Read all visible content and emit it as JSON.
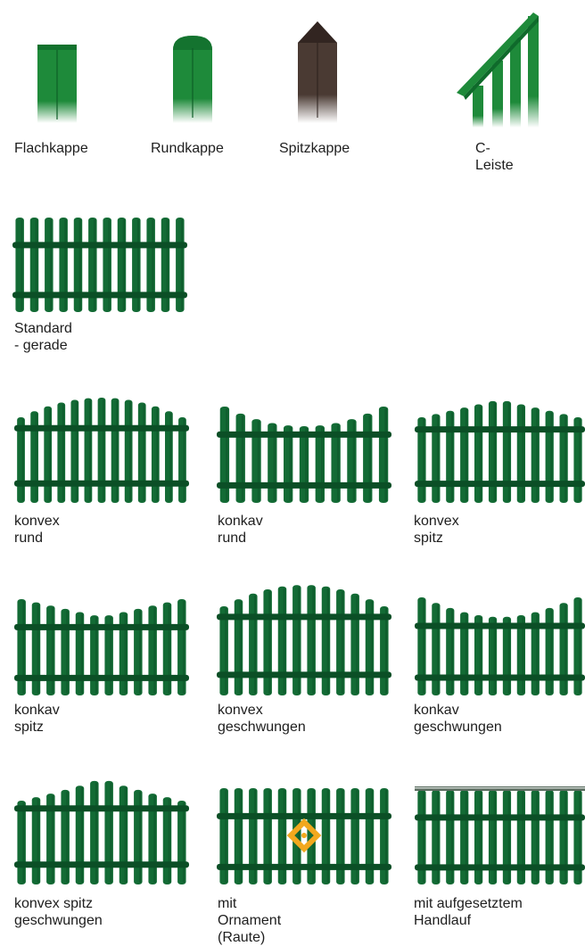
{
  "caps": [
    {
      "label": "Flachkappe",
      "shape": "flat",
      "color": "#1e8a3a"
    },
    {
      "label": "Rundkappe",
      "shape": "round",
      "color": "#1e8a3a"
    },
    {
      "label": "Spitzkappe",
      "shape": "pointed",
      "color": "#4a3a33"
    },
    {
      "label": "C-Leiste",
      "shape": "c-rail",
      "color": "#1e8a3a"
    }
  ],
  "fences": [
    {
      "label": "Standard - gerade",
      "style": "straight"
    },
    {
      "label": "konvex rund",
      "style": "convex-round"
    },
    {
      "label": "konkav rund",
      "style": "concave-round"
    },
    {
      "label": "konvex spitz",
      "style": "convex-pointed"
    },
    {
      "label": "konkav spitz",
      "style": "concave-pointed"
    },
    {
      "label": "konvex geschwungen",
      "style": "convex-curved"
    },
    {
      "label": "konkav geschwungen",
      "style": "concave-curved"
    },
    {
      "label": "konvex spitz geschwungen",
      "style": "convex-pointed-curved"
    },
    {
      "label": "mit Ornament (Raute)",
      "style": "ornament-diamond"
    },
    {
      "label": "mit aufgesetztem Handlauf",
      "style": "handrail"
    }
  ],
  "colors": {
    "fence_green": "#136b35",
    "fence_dark": "#0b4f26",
    "ornament": "#f2a81d"
  }
}
